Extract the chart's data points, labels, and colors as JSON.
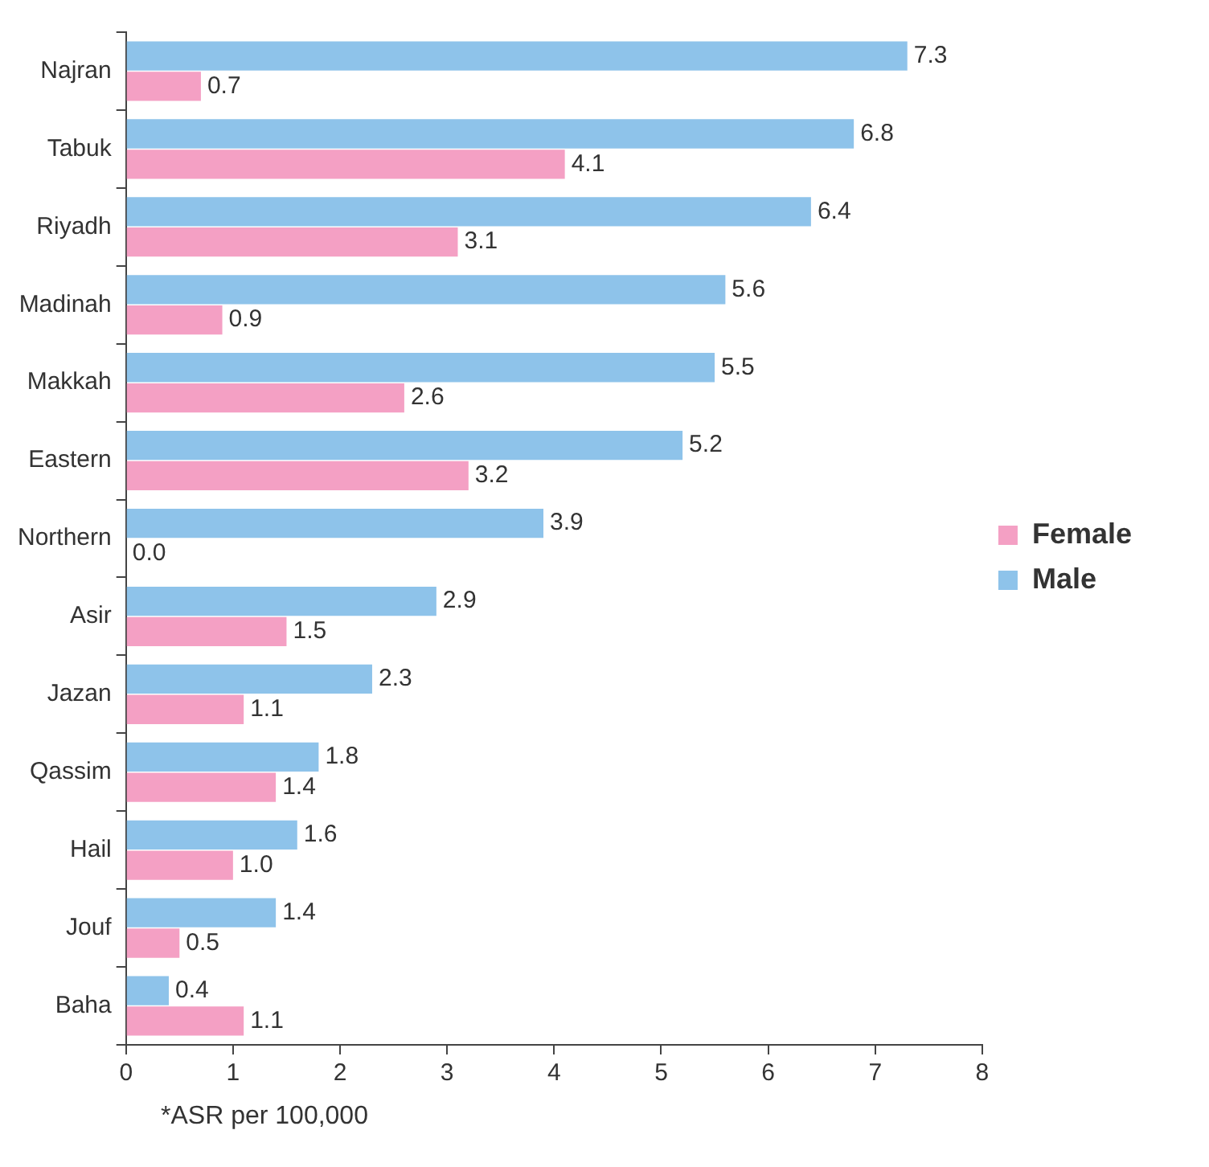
{
  "chart_data": {
    "type": "bar",
    "orientation": "horizontal",
    "categories": [
      "Najran",
      "Tabuk",
      "Riyadh",
      "Madinah",
      "Makkah",
      "Eastern",
      "Northern",
      "Asir",
      "Jazan",
      "Qassim",
      "Hail",
      "Jouf",
      "Baha"
    ],
    "series": [
      {
        "name": "Male",
        "color": "#8ec3ea",
        "values": [
          7.3,
          6.8,
          6.4,
          5.6,
          5.5,
          5.2,
          3.9,
          2.9,
          2.3,
          1.8,
          1.6,
          1.4,
          0.4
        ],
        "value_labels": [
          "7.3",
          "6.8",
          "6.4",
          "5.6",
          "5.5",
          "5.2",
          "3.9",
          "2.9",
          "2.3",
          "1.8",
          "1.6",
          "1.4",
          "0.4"
        ]
      },
      {
        "name": "Female",
        "color": "#f4a0c4",
        "values": [
          0.7,
          4.1,
          3.1,
          0.9,
          2.6,
          3.2,
          0,
          1.5,
          1.1,
          1.4,
          1,
          0.5,
          1.1
        ],
        "value_labels": [
          "0.7",
          "4.1",
          "3.1",
          "0.9",
          "2.6",
          "3.2",
          "0.0",
          "1.5",
          "1.1",
          "1.4",
          "1.0",
          "0.5",
          "1.1"
        ]
      }
    ],
    "xlim": [
      0,
      8
    ],
    "xticks": [
      0,
      1,
      2,
      3,
      4,
      5,
      6,
      7,
      8
    ],
    "grid": false,
    "legend": "right",
    "annotations": [
      "*ASR per 100,000"
    ]
  }
}
